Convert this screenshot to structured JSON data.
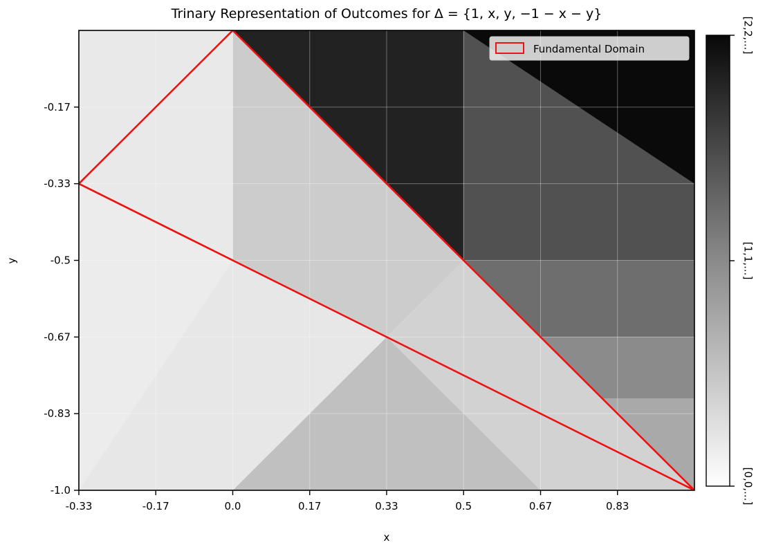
{
  "chart_data": {
    "type": "heatmap",
    "title": "Trinary Representation of Outcomes for Δ = {1, x, y, −1 − x − y}",
    "xlabel": "x",
    "ylabel": "y",
    "xlim": [
      -0.3333,
      1.0
    ],
    "ylim": [
      -1.0,
      0.0
    ],
    "xticks": [
      -0.3333,
      -0.1667,
      0.0,
      0.1667,
      0.3333,
      0.5,
      0.6667,
      0.8333
    ],
    "xtick_labels": [
      "-0.33",
      "-0.17",
      "0.0",
      "0.17",
      "0.33",
      "0.5",
      "0.67",
      "0.83"
    ],
    "yticks": [
      -1.0,
      -0.8333,
      -0.6667,
      -0.5,
      -0.3333,
      -0.1667
    ],
    "ytick_labels": [
      "-1.0",
      "-0.83",
      "-0.67",
      "-0.5",
      "-0.33",
      "-0.17"
    ],
    "colormap": "greys",
    "colorbar": {
      "labels": [
        "[2,2,...]",
        "[1,1,...]",
        "[0,0,...]"
      ],
      "values": [
        2,
        1,
        0
      ]
    },
    "legend": {
      "entries": [
        "Fundamental Domain"
      ],
      "placement": "top-right"
    },
    "fundamental_domain": {
      "color": "#ee1111",
      "vertices": [
        [
          0.0,
          0.0
        ],
        [
          -0.3333,
          -0.3333
        ],
        [
          1.0,
          -1.0
        ]
      ]
    },
    "regions": [
      {
        "level": 2,
        "vertices": [
          [
            0.5,
            0.0
          ],
          [
            1.0,
            0.0
          ],
          [
            1.0,
            -0.5
          ]
        ]
      },
      {
        "level": 1.8,
        "vertices": [
          [
            0.0,
            0.0
          ],
          [
            0.5,
            0.0
          ],
          [
            0.5,
            -0.5
          ]
        ]
      },
      {
        "level": 1.4,
        "vertices": [
          [
            0.5,
            -0.5
          ],
          [
            1.0,
            -0.5
          ],
          [
            1.0,
            -0.3333
          ],
          [
            0.5,
            0.0
          ]
        ]
      },
      {
        "level": 1.15,
        "vertices": [
          [
            0.5,
            -0.5
          ],
          [
            1.0,
            -0.5
          ],
          [
            1.0,
            -0.6667
          ],
          [
            0.6667,
            -0.6667
          ]
        ]
      },
      {
        "level": 0.9,
        "vertices": [
          [
            0.6667,
            -0.6667
          ],
          [
            1.0,
            -0.6667
          ],
          [
            1.0,
            -0.8
          ],
          [
            0.8,
            -0.8
          ]
        ]
      },
      {
        "level": 0.65,
        "vertices": [
          [
            0.8,
            -0.8
          ],
          [
            1.0,
            -0.8
          ],
          [
            1.0,
            -1.0
          ]
        ]
      },
      {
        "level": 0.35,
        "vertices": [
          [
            0.0,
            0.0
          ],
          [
            0.5,
            -0.5
          ],
          [
            0.3333,
            -0.6667
          ],
          [
            0.0,
            -0.5
          ]
        ]
      },
      {
        "level": 0.3,
        "vertices": [
          [
            0.3333,
            -0.6667
          ],
          [
            0.5,
            -0.5
          ],
          [
            0.6667,
            -0.6667
          ],
          [
            1.0,
            -1.0
          ],
          [
            0.6667,
            -1.0
          ]
        ]
      },
      {
        "level": 0.45,
        "vertices": [
          [
            0.0,
            -1.0
          ],
          [
            0.3333,
            -0.6667
          ],
          [
            0.6667,
            -1.0
          ]
        ]
      },
      {
        "level": 0.1,
        "vertices": [
          [
            -0.3333,
            0.0
          ],
          [
            0.0,
            0.0
          ],
          [
            0.0,
            -0.5
          ],
          [
            -0.3333,
            -0.3333
          ]
        ]
      },
      {
        "level": 0.08,
        "vertices": [
          [
            -0.3333,
            -0.3333
          ],
          [
            0.0,
            -0.5
          ],
          [
            -0.3333,
            -1.0
          ]
        ]
      },
      {
        "level": 0.12,
        "vertices": [
          [
            0.0,
            -0.5
          ],
          [
            0.3333,
            -0.6667
          ],
          [
            0.0,
            -1.0
          ],
          [
            -0.3333,
            -1.0
          ]
        ]
      }
    ]
  }
}
